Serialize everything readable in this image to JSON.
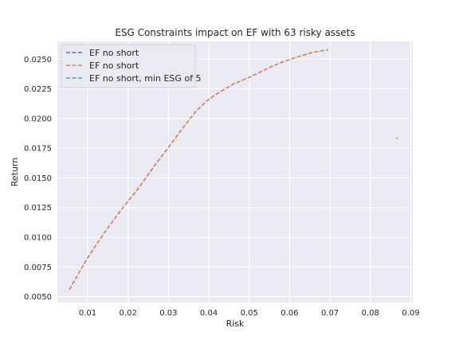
{
  "chart_data": {
    "type": "line",
    "title": "ESG Constraints impact on EF with 63 risky assets",
    "xlabel": "Risk",
    "ylabel": "Return",
    "xlim": [
      0.0025,
      0.0905
    ],
    "ylim": [
      0.0045,
      0.0265
    ],
    "xticks": [
      0.01,
      0.02,
      0.03,
      0.04,
      0.05,
      0.06,
      0.07,
      0.08,
      0.09
    ],
    "xtick_labels": [
      "0.01",
      "0.02",
      "0.03",
      "0.04",
      "0.05",
      "0.06",
      "0.07",
      "0.08",
      "0.09"
    ],
    "yticks": [
      0.005,
      0.0075,
      0.01,
      0.0125,
      0.015,
      0.0175,
      0.02,
      0.0225,
      0.025
    ],
    "ytick_labels": [
      "0.0050",
      "0.0075",
      "0.0100",
      "0.0125",
      "0.0150",
      "0.0175",
      "0.0200",
      "0.0225",
      "0.0250"
    ],
    "grid": true,
    "legend_position": "upper-left",
    "background": "#eaeaf2",
    "series": [
      {
        "name": "EF no short",
        "color": "#4c72b0",
        "style": "dashed",
        "x": [
          0.0055,
          0.0075,
          0.0095,
          0.012,
          0.015,
          0.0185,
          0.0225,
          0.0265,
          0.0305,
          0.034,
          0.0365,
          0.0395,
          0.0425,
          0.046,
          0.0495,
          0.052,
          0.055,
          0.0585,
          0.062,
          0.066,
          0.0695
        ],
        "y": [
          0.0056,
          0.0068,
          0.008,
          0.0093,
          0.0108,
          0.0124,
          0.0141,
          0.016,
          0.0178,
          0.0194,
          0.0205,
          0.0215,
          0.0222,
          0.0229,
          0.0234,
          0.0238,
          0.0243,
          0.0248,
          0.0252,
          0.0256,
          0.0258
        ]
      },
      {
        "name": "EF no short",
        "color": "#dd8452",
        "style": "dashed",
        "x": [
          0.0055,
          0.0075,
          0.0095,
          0.012,
          0.015,
          0.0185,
          0.0225,
          0.0265,
          0.0305,
          0.034,
          0.0365,
          0.0395,
          0.0425,
          0.046,
          0.0495,
          0.052,
          0.055,
          0.0585,
          0.062,
          0.066,
          0.0695
        ],
        "y": [
          0.0056,
          0.0068,
          0.008,
          0.0093,
          0.0108,
          0.0124,
          0.0141,
          0.016,
          0.0178,
          0.0194,
          0.0205,
          0.0215,
          0.0222,
          0.0229,
          0.0234,
          0.0238,
          0.0243,
          0.0248,
          0.0252,
          0.0256,
          0.0258
        ]
      },
      {
        "name": "EF no short, min ESG of 5",
        "color": "#55a868",
        "style": "dashed",
        "x": [
          0.0865,
          0.0866
        ],
        "y": [
          0.0183,
          0.0184
        ]
      }
    ]
  }
}
